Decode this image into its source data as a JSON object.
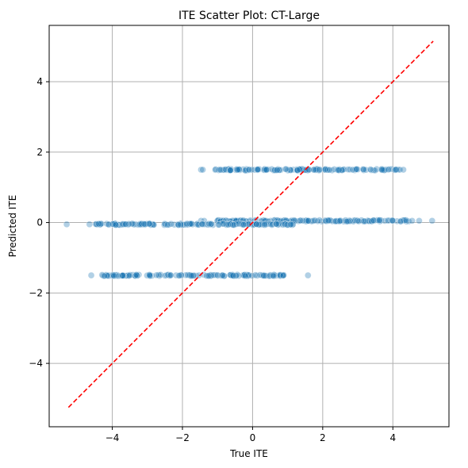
{
  "chart_data": {
    "type": "scatter",
    "title": "ITE Scatter Plot: CT-Large",
    "xlabel": "True ITE",
    "ylabel": "Predicted ITE",
    "xlim": [
      -5.8,
      5.6
    ],
    "ylim": [
      -5.8,
      5.6
    ],
    "xticks": [
      -4,
      -2,
      0,
      2,
      4
    ],
    "xtick_labels": [
      "−4",
      "−2",
      "0",
      "2",
      "4"
    ],
    "yticks": [
      -4,
      -2,
      0,
      2,
      4
    ],
    "ytick_labels": [
      "−4",
      "−2",
      "0",
      "2",
      "4"
    ],
    "grid": true,
    "colors": {
      "points": "#1f77b4",
      "diagonal": "#ff0000",
      "grid": "#b0b0b0"
    },
    "point_alpha": 0.35,
    "diagonal": {
      "from": [
        -5.25,
        -5.25
      ],
      "to": [
        5.15,
        5.15
      ],
      "style": "dashed"
    },
    "clusters": [
      {
        "y": 1.5,
        "x_range": [
          -1.1,
          4.3
        ],
        "sparse": [
          [
            -1.47,
            1.5
          ],
          [
            -1.42,
            1.5
          ],
          [
            4.2,
            1.5
          ],
          [
            4.3,
            1.5
          ]
        ]
      },
      {
        "y": 0.05,
        "x_range": [
          -1.0,
          4.5
        ],
        "sparse": [
          [
            -1.47,
            0.05
          ],
          [
            -1.38,
            0.05
          ],
          [
            4.55,
            0.05
          ],
          [
            4.75,
            0.05
          ],
          [
            5.12,
            0.05
          ]
        ]
      },
      {
        "y": -0.05,
        "x_range": [
          -4.5,
          1.2
        ],
        "sparse": [
          [
            -5.3,
            -0.05
          ],
          [
            -4.65,
            -0.05
          ]
        ]
      },
      {
        "y": -1.5,
        "x_range": [
          -4.3,
          0.95
        ],
        "sparse": [
          [
            -4.6,
            -1.5
          ],
          [
            1.58,
            -1.5
          ]
        ]
      }
    ]
  }
}
